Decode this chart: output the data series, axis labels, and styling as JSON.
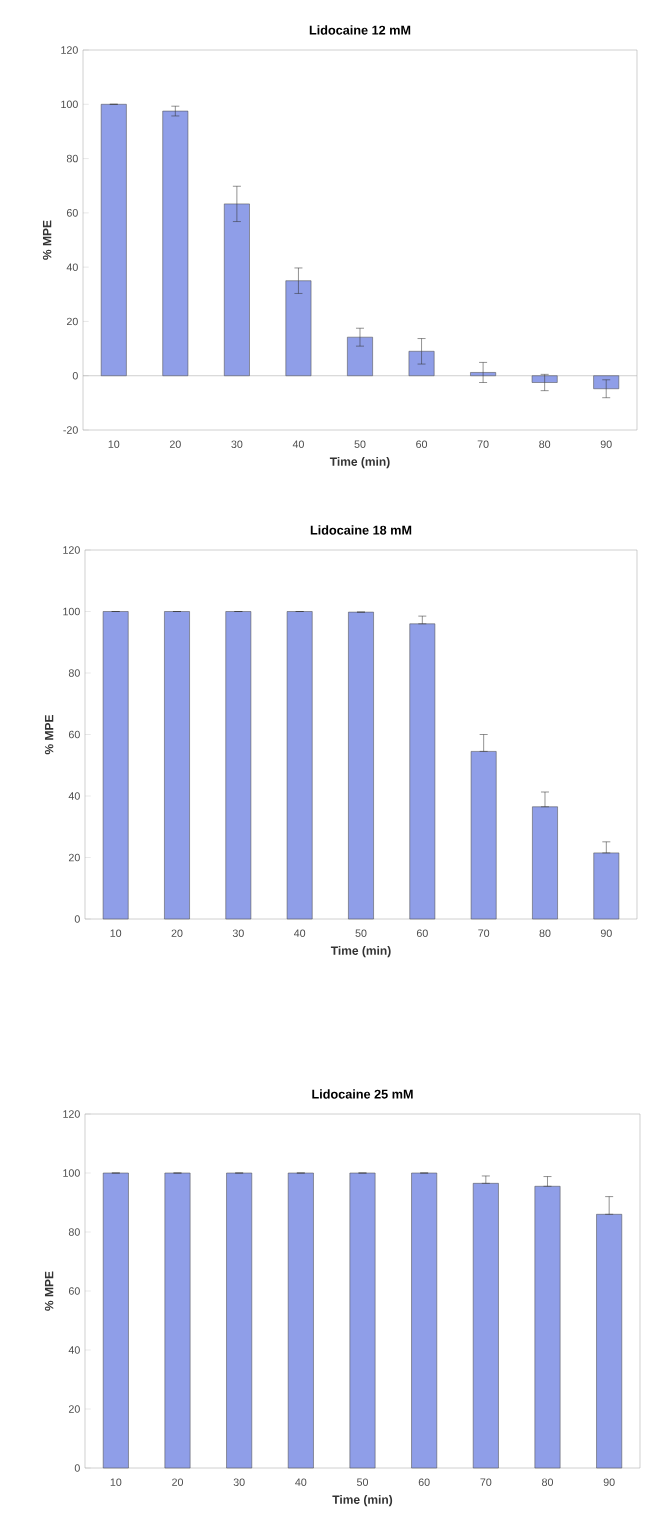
{
  "chart_data": [
    {
      "type": "bar",
      "title": "Lidocaine 12 mM",
      "xlabel": "Time (min)",
      "ylabel": "% MPE",
      "color": "#8f9ee8",
      "categories": [
        "10",
        "20",
        "30",
        "40",
        "50",
        "60",
        "70",
        "80",
        "90"
      ],
      "values": [
        100,
        97.5,
        63.3,
        35,
        14.2,
        9,
        1.2,
        -2.5,
        -4.8
      ],
      "errors": [
        null,
        1.8,
        6.5,
        4.7,
        3.3,
        4.7,
        3.7,
        3,
        3.3
      ],
      "ylim": [
        -20,
        120
      ],
      "yticks": [
        -20,
        0,
        20,
        40,
        60,
        80,
        100,
        120
      ]
    },
    {
      "type": "bar",
      "title": "Lidocaine 18 mM",
      "xlabel": "Time (min)",
      "ylabel": "% MPE",
      "color": "#8f9ee8",
      "categories": [
        "10",
        "20",
        "30",
        "40",
        "50",
        "60",
        "70",
        "80",
        "90"
      ],
      "values": [
        100,
        100,
        100,
        100,
        99.8,
        96,
        54.5,
        36.5,
        21.5
      ],
      "errors": [
        null,
        null,
        null,
        null,
        null,
        [
          96,
          98.5
        ],
        [
          54.5,
          60
        ],
        [
          36.5,
          41.3
        ],
        [
          21.5,
          25.1
        ]
      ],
      "ylim": [
        0,
        120
      ],
      "yticks": [
        0,
        20,
        40,
        60,
        80,
        100,
        120
      ]
    },
    {
      "type": "bar",
      "title": "Lidocaine 25 mM",
      "xlabel": "Time (min)",
      "ylabel": "% MPE",
      "color": "#8f9ee8",
      "categories": [
        "10",
        "20",
        "30",
        "40",
        "50",
        "60",
        "70",
        "80",
        "90"
      ],
      "values": [
        100,
        100,
        100,
        100,
        100,
        100,
        96.5,
        95.5,
        86
      ],
      "errors": [
        null,
        null,
        null,
        null,
        null,
        null,
        [
          96.5,
          99
        ],
        [
          95.5,
          98.8
        ],
        [
          86,
          92
        ]
      ],
      "ylim": [
        0,
        120
      ],
      "yticks": [
        0,
        20,
        40,
        60,
        80,
        100,
        120
      ]
    }
  ]
}
